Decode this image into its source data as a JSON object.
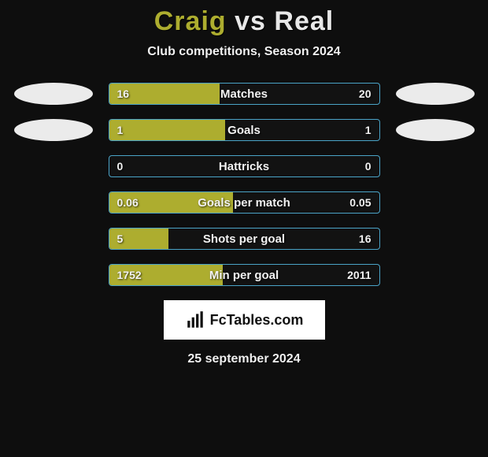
{
  "title": {
    "player1": "Craig",
    "vs": "vs",
    "player2": "Real"
  },
  "subtitle": "Club competitions, Season 2024",
  "colors": {
    "player1_fill": "#adad2f",
    "player2_fill": "#ebebeb",
    "bar_border": "#4aa3c7",
    "bar_bg": "#121212",
    "background": "#0e0e0e",
    "badge_left": "#ebebeb",
    "badge_right": "#ebebeb"
  },
  "stats": [
    {
      "label": "Matches",
      "left_value": "16",
      "right_value": "20",
      "left_pct": 41,
      "right_pct": 0,
      "show_badges": true
    },
    {
      "label": "Goals",
      "left_value": "1",
      "right_value": "1",
      "left_pct": 43,
      "right_pct": 0,
      "show_badges": true
    },
    {
      "label": "Hattricks",
      "left_value": "0",
      "right_value": "0",
      "left_pct": 0,
      "right_pct": 0,
      "show_badges": false
    },
    {
      "label": "Goals per match",
      "left_value": "0.06",
      "right_value": "0.05",
      "left_pct": 46,
      "right_pct": 0,
      "show_badges": false
    },
    {
      "label": "Shots per goal",
      "left_value": "5",
      "right_value": "16",
      "left_pct": 22,
      "right_pct": 0,
      "show_badges": false
    },
    {
      "label": "Min per goal",
      "left_value": "1752",
      "right_value": "2011",
      "left_pct": 42,
      "right_pct": 0,
      "show_badges": false
    }
  ],
  "logo_text": "FcTables.com",
  "date": "25 september 2024"
}
